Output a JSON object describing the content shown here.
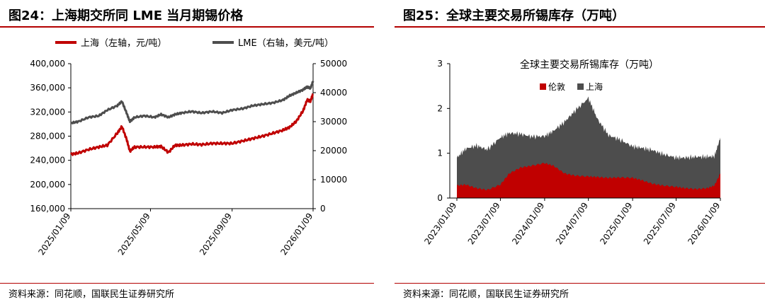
{
  "left": {
    "figure_title": "图24：上海期交所同 LME 当月期锡价格",
    "source": "资料来源：同花顺，国联民生证券研究所"
  },
  "right": {
    "figure_title": "图25：全球主要交易所锡库存（万吨）",
    "source": "资料来源：同花顺，国联民生证券研究所"
  },
  "chart_data": [
    {
      "type": "line",
      "title": "",
      "legend_position": "top",
      "grid": false,
      "x_ticks": [
        "2025/01/09",
        "2025/05/09",
        "2025/09/09",
        "2026/01/09"
      ],
      "y_left": {
        "ylim": [
          160000,
          400000
        ],
        "ticks": [
          "160,000",
          "200,000",
          "240,000",
          "280,000",
          "320,000",
          "360,000",
          "400,000"
        ]
      },
      "y_right": {
        "ylim": [
          0,
          50000
        ],
        "ticks": [
          "0",
          "10000",
          "20000",
          "30000",
          "40000",
          "50000"
        ]
      },
      "series": [
        {
          "name": "上海（左轴，元/吨）",
          "axis": "left",
          "color": "#c00000",
          "x": [
            "2025-01-09",
            "2025-01-20",
            "2025-02-05",
            "2025-02-20",
            "2025-03-05",
            "2025-03-20",
            "2025-03-27",
            "2025-04-03",
            "2025-04-08",
            "2025-04-15",
            "2025-04-30",
            "2025-05-15",
            "2025-05-25",
            "2025-06-05",
            "2025-06-15",
            "2025-06-25",
            "2025-07-10",
            "2025-07-25",
            "2025-08-10",
            "2025-08-25",
            "2025-09-09",
            "2025-09-25",
            "2025-10-10",
            "2025-10-25",
            "2025-11-10",
            "2025-11-25",
            "2025-12-05",
            "2025-12-15",
            "2025-12-25",
            "2025-12-31",
            "2026-01-05",
            "2026-01-09"
          ],
          "y": [
            250000,
            252000,
            258000,
            262000,
            265000,
            285000,
            296000,
            275000,
            255000,
            262000,
            262000,
            262000,
            263000,
            253000,
            265000,
            265000,
            267000,
            266000,
            268000,
            268000,
            268000,
            272000,
            276000,
            280000,
            285000,
            290000,
            295000,
            305000,
            322000,
            340000,
            338000,
            350000
          ]
        },
        {
          "name": "LME（右轴，美元/吨）",
          "axis": "right",
          "color": "#4d4d4d",
          "x": [
            "2025-01-09",
            "2025-01-20",
            "2025-02-05",
            "2025-02-20",
            "2025-03-05",
            "2025-03-20",
            "2025-03-27",
            "2025-04-03",
            "2025-04-08",
            "2025-04-15",
            "2025-04-30",
            "2025-05-15",
            "2025-05-25",
            "2025-06-05",
            "2025-06-15",
            "2025-06-25",
            "2025-07-10",
            "2025-07-25",
            "2025-08-10",
            "2025-08-25",
            "2025-09-09",
            "2025-09-25",
            "2025-10-10",
            "2025-10-25",
            "2025-11-10",
            "2025-11-25",
            "2025-12-05",
            "2025-12-15",
            "2025-12-25",
            "2025-12-31",
            "2026-01-05",
            "2026-01-09"
          ],
          "y": [
            29500,
            30000,
            31500,
            32000,
            34000,
            35500,
            37000,
            33000,
            30000,
            31500,
            32000,
            31500,
            32500,
            31500,
            32500,
            33000,
            33500,
            33000,
            33500,
            33000,
            34000,
            34500,
            35500,
            36000,
            36500,
            37500,
            39000,
            40000,
            41000,
            42000,
            41500,
            44000
          ]
        }
      ]
    },
    {
      "type": "area",
      "title": "全球主要交易所锡库存（万吨）",
      "legend_position": "top",
      "grid": false,
      "stacked": true,
      "x_ticks": [
        "2023/01/09",
        "2023/07/09",
        "2024/01/09",
        "2024/07/09",
        "2025/01/09",
        "2025/07/09",
        "2026/01/09"
      ],
      "y": {
        "ylim": [
          0,
          3
        ],
        "ticks": [
          "0",
          "1",
          "2",
          "3"
        ]
      },
      "series": [
        {
          "name": "伦敦",
          "color": "#c00000",
          "x": [
            "2023-01-09",
            "2023-02-15",
            "2023-04-01",
            "2023-05-15",
            "2023-07-09",
            "2023-08-15",
            "2023-10-01",
            "2023-11-15",
            "2024-01-09",
            "2024-02-15",
            "2024-04-01",
            "2024-05-15",
            "2024-07-09",
            "2024-08-15",
            "2024-10-01",
            "2024-11-15",
            "2025-01-09",
            "2025-02-15",
            "2025-04-01",
            "2025-05-15",
            "2025-07-09",
            "2025-08-15",
            "2025-10-01",
            "2025-11-15",
            "2025-12-15",
            "2026-01-09"
          ],
          "y": [
            0.28,
            0.3,
            0.22,
            0.18,
            0.3,
            0.55,
            0.68,
            0.72,
            0.78,
            0.72,
            0.55,
            0.5,
            0.48,
            0.47,
            0.45,
            0.46,
            0.45,
            0.4,
            0.32,
            0.28,
            0.25,
            0.22,
            0.2,
            0.22,
            0.28,
            0.55
          ]
        },
        {
          "name": "上海",
          "color": "#4d4d4d",
          "x": [
            "2023-01-09",
            "2023-02-15",
            "2023-04-01",
            "2023-05-15",
            "2023-07-09",
            "2023-08-15",
            "2023-10-01",
            "2023-11-15",
            "2024-01-09",
            "2024-02-15",
            "2024-04-01",
            "2024-05-15",
            "2024-07-09",
            "2024-08-15",
            "2024-10-01",
            "2024-11-15",
            "2025-01-09",
            "2025-02-15",
            "2025-04-01",
            "2025-05-15",
            "2025-07-09",
            "2025-08-15",
            "2025-10-01",
            "2025-11-15",
            "2025-12-15",
            "2026-01-09"
          ],
          "y": [
            0.62,
            0.8,
            0.95,
            0.9,
            1.05,
            0.9,
            0.75,
            0.65,
            0.6,
            0.78,
            1.15,
            1.45,
            1.75,
            1.3,
            0.95,
            0.85,
            0.7,
            0.72,
            0.75,
            0.7,
            0.65,
            0.68,
            0.72,
            0.7,
            0.65,
            0.8
          ]
        }
      ]
    }
  ]
}
